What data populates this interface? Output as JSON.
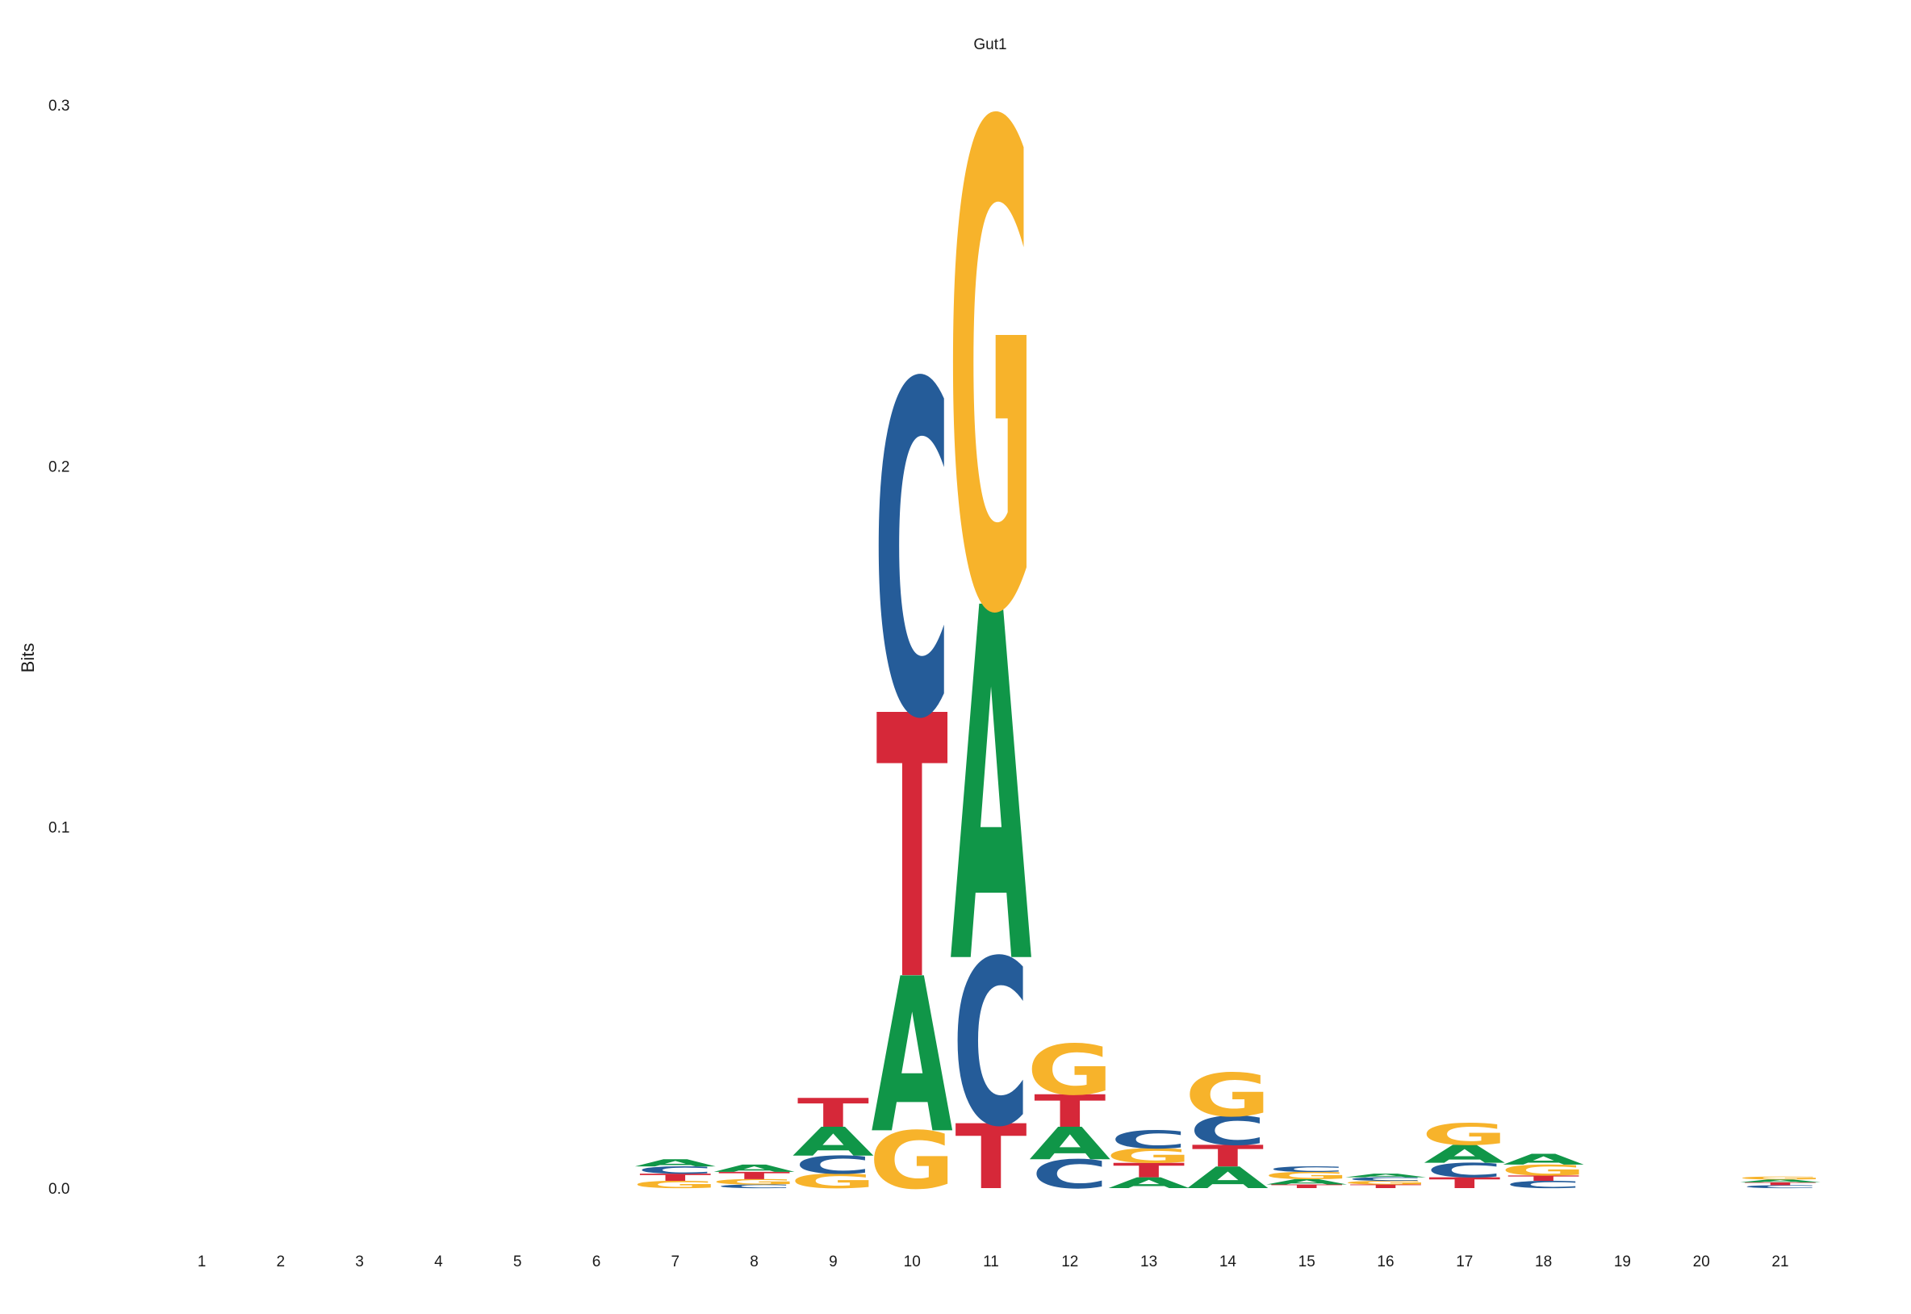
{
  "chart_data": {
    "type": "sequence-logo",
    "title": "Gut1",
    "ylabel": "Bits",
    "xlabel": "",
    "ylim": [
      0,
      0.3
    ],
    "y_ticks": [
      "0.0",
      "0.1",
      "0.2",
      "0.3"
    ],
    "y_tick_values": [
      0,
      0.1,
      0.2,
      0.3
    ],
    "positions": [
      "1",
      "2",
      "3",
      "4",
      "5",
      "6",
      "7",
      "8",
      "9",
      "10",
      "11",
      "12",
      "13",
      "14",
      "15",
      "16",
      "17",
      "18",
      "19",
      "20",
      "21"
    ],
    "colors": {
      "A": "#109648",
      "C": "#255C99",
      "G": "#F7B32B",
      "T": "#D62839"
    },
    "stacks": [
      {
        "position": 1,
        "letters": []
      },
      {
        "position": 2,
        "letters": []
      },
      {
        "position": 3,
        "letters": []
      },
      {
        "position": 4,
        "letters": []
      },
      {
        "position": 5,
        "letters": []
      },
      {
        "position": 6,
        "letters": []
      },
      {
        "position": 7,
        "letters": [
          {
            "base": "G",
            "bits": 0.002
          },
          {
            "base": "T",
            "bits": 0.002
          },
          {
            "base": "C",
            "bits": 0.002
          },
          {
            "base": "A",
            "bits": 0.002
          }
        ]
      },
      {
        "position": 8,
        "letters": [
          {
            "base": "C",
            "bits": 0.001
          },
          {
            "base": "G",
            "bits": 0.0015
          },
          {
            "base": "T",
            "bits": 0.002
          },
          {
            "base": "A",
            "bits": 0.002
          }
        ]
      },
      {
        "position": 9,
        "letters": [
          {
            "base": "G",
            "bits": 0.004
          },
          {
            "base": "C",
            "bits": 0.005
          },
          {
            "base": "A",
            "bits": 0.008
          },
          {
            "base": "T",
            "bits": 0.008
          }
        ]
      },
      {
        "position": 10,
        "letters": [
          {
            "base": "G",
            "bits": 0.016
          },
          {
            "base": "A",
            "bits": 0.043
          },
          {
            "base": "T",
            "bits": 0.073
          },
          {
            "base": "C",
            "bits": 0.092
          }
        ]
      },
      {
        "position": 11,
        "letters": [
          {
            "base": "T",
            "bits": 0.018
          },
          {
            "base": "C",
            "bits": 0.046
          },
          {
            "base": "A",
            "bits": 0.098
          },
          {
            "base": "G",
            "bits": 0.134
          }
        ]
      },
      {
        "position": 12,
        "letters": [
          {
            "base": "C",
            "bits": 0.008
          },
          {
            "base": "A",
            "bits": 0.009
          },
          {
            "base": "T",
            "bits": 0.009
          },
          {
            "base": "G",
            "bits": 0.014
          }
        ]
      },
      {
        "position": 13,
        "letters": [
          {
            "base": "A",
            "bits": 0.003
          },
          {
            "base": "T",
            "bits": 0.004
          },
          {
            "base": "G",
            "bits": 0.004
          },
          {
            "base": "C",
            "bits": 0.005
          }
        ]
      },
      {
        "position": 14,
        "letters": [
          {
            "base": "A",
            "bits": 0.006
          },
          {
            "base": "T",
            "bits": 0.006
          },
          {
            "base": "C",
            "bits": 0.008
          },
          {
            "base": "G",
            "bits": 0.012
          }
        ]
      },
      {
        "position": 15,
        "letters": [
          {
            "base": "T",
            "bits": 0.001
          },
          {
            "base": "A",
            "bits": 0.0015
          },
          {
            "base": "G",
            "bits": 0.002
          },
          {
            "base": "C",
            "bits": 0.0015
          }
        ]
      },
      {
        "position": 16,
        "letters": [
          {
            "base": "T",
            "bits": 0.001
          },
          {
            "base": "G",
            "bits": 0.001
          },
          {
            "base": "C",
            "bits": 0.001
          },
          {
            "base": "A",
            "bits": 0.001
          }
        ]
      },
      {
        "position": 17,
        "letters": [
          {
            "base": "T",
            "bits": 0.003
          },
          {
            "base": "C",
            "bits": 0.004
          },
          {
            "base": "A",
            "bits": 0.005
          },
          {
            "base": "G",
            "bits": 0.006
          }
        ]
      },
      {
        "position": 18,
        "letters": [
          {
            "base": "C",
            "bits": 0.002
          },
          {
            "base": "T",
            "bits": 0.0015
          },
          {
            "base": "G",
            "bits": 0.003
          },
          {
            "base": "A",
            "bits": 0.003
          }
        ]
      },
      {
        "position": 19,
        "letters": []
      },
      {
        "position": 20,
        "letters": []
      },
      {
        "position": 21,
        "letters": [
          {
            "base": "C",
            "bits": 0.0008
          },
          {
            "base": "T",
            "bits": 0.0008
          },
          {
            "base": "A",
            "bits": 0.0008
          },
          {
            "base": "G",
            "bits": 0.0008
          }
        ]
      }
    ]
  }
}
